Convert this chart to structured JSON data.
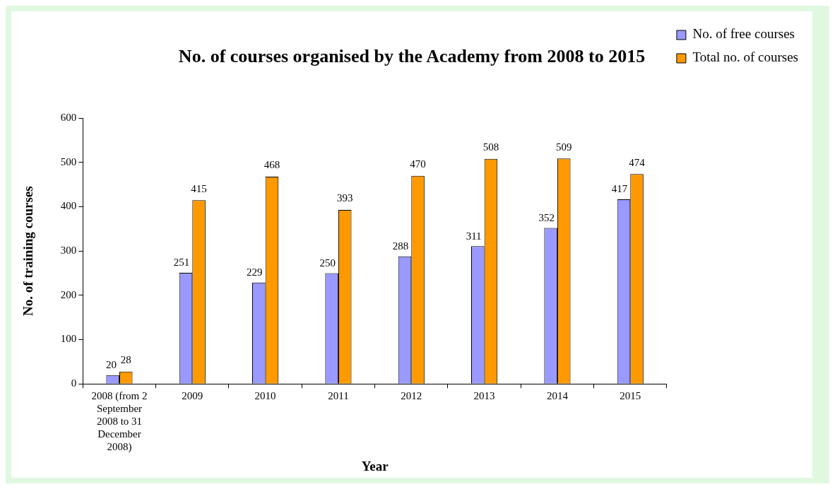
{
  "chart_data": {
    "type": "bar",
    "title": "No. of courses organised by the Academy from 2008 to 2015",
    "xlabel": "Year",
    "ylabel": "No. of training courses",
    "categories": [
      "2008 (from 2 September 2008 to 31 December 2008)",
      "2009",
      "2010",
      "2011",
      "2012",
      "2013",
      "2014",
      "2015"
    ],
    "series": [
      {
        "name": "No. of free courses",
        "color": "#9999ff",
        "values": [
          20,
          251,
          229,
          250,
          288,
          311,
          352,
          417
        ]
      },
      {
        "name": "Total no. of courses",
        "color": "#ff9900",
        "values": [
          28,
          415,
          468,
          393,
          470,
          508,
          509,
          474
        ]
      }
    ],
    "ylim": [
      0,
      600
    ],
    "yticks": [
      0,
      100,
      200,
      300,
      400,
      500,
      600
    ],
    "grid": false,
    "legend": "top right",
    "data_labels": true
  }
}
